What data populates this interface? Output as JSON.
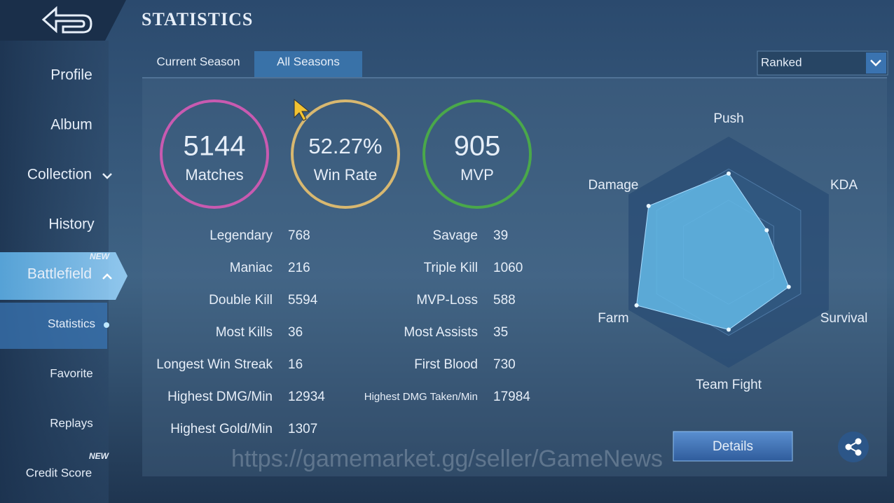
{
  "header": {
    "title": "STATISTICS"
  },
  "sidebar": {
    "items": [
      {
        "label": "Profile"
      },
      {
        "label": "Album"
      },
      {
        "label": "Collection"
      },
      {
        "label": "History"
      },
      {
        "label": "Battlefield",
        "badge": "NEW"
      },
      {
        "label": "Statistics"
      },
      {
        "label": "Favorite"
      },
      {
        "label": "Replays"
      },
      {
        "label": "Credit Score",
        "badge": "NEW"
      }
    ]
  },
  "tabs": [
    "Current Season",
    "All Seasons"
  ],
  "dropdown": "Ranked",
  "summary": [
    {
      "value": "5144",
      "label": "Matches"
    },
    {
      "value": "52.27%",
      "label": "Win Rate"
    },
    {
      "value": "905",
      "label": "MVP"
    }
  ],
  "stats": {
    "left": [
      {
        "label": "Legendary",
        "value": 768
      },
      {
        "label": "Maniac",
        "value": 216
      },
      {
        "label": "Double Kill",
        "value": 5594
      },
      {
        "label": "Most Kills",
        "value": 36
      },
      {
        "label": "Longest Win Streak",
        "value": 16
      },
      {
        "label": "Highest DMG/Min",
        "value": 12934
      },
      {
        "label": "Highest Gold/Min",
        "value": 1307
      }
    ],
    "right": [
      {
        "label": "Savage",
        "value": 39
      },
      {
        "label": "Triple Kill",
        "value": 1060
      },
      {
        "label": "MVP-Loss",
        "value": 588
      },
      {
        "label": "Most Assists",
        "value": 35
      },
      {
        "label": "First Blood",
        "value": 730
      },
      {
        "label": "Highest DMG Taken/Min",
        "value": 17984
      }
    ]
  },
  "chart_data": {
    "type": "radar",
    "categories": [
      "Push",
      "KDA",
      "Survival",
      "Team Fight",
      "Farm",
      "Damage"
    ],
    "values": [
      68,
      38,
      60,
      67,
      92,
      80
    ],
    "rlim": [
      0,
      100
    ]
  },
  "button": "Details",
  "watermark": "https://gamemarket.gg/seller/GameNews"
}
